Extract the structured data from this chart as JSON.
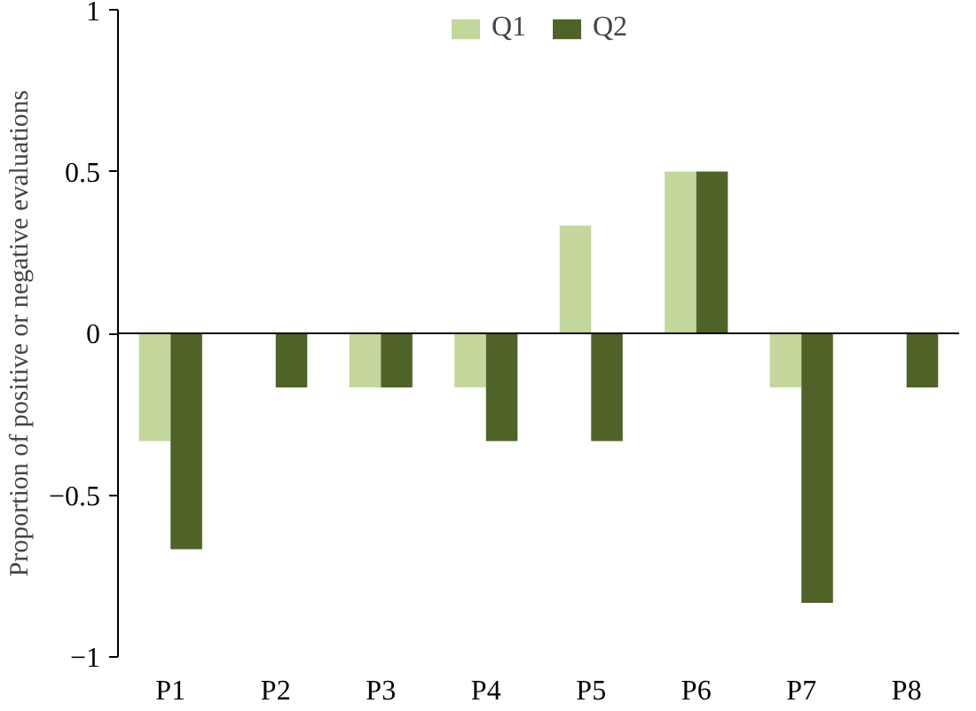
{
  "chart_data": {
    "type": "bar",
    "ylabel": "Proportion of positive or negative evaluations",
    "categories": [
      "P1",
      "P2",
      "P3",
      "P4",
      "P5",
      "P6",
      "P7",
      "P8"
    ],
    "series": [
      {
        "name": "Q1",
        "color": "#c3d69b",
        "values": [
          -0.333,
          0,
          -0.167,
          -0.167,
          0.333,
          0.5,
          -0.167,
          0
        ]
      },
      {
        "name": "Q2",
        "color": "#4f6228",
        "values": [
          -0.667,
          -0.167,
          -0.167,
          -0.333,
          -0.333,
          0.5,
          -0.833,
          -0.167
        ]
      }
    ],
    "ylim": [
      -1,
      1
    ],
    "yticks": [
      -1,
      -0.5,
      0,
      0.5,
      1
    ],
    "grid": false,
    "ref_lines": [
      {
        "axis": "y",
        "value": 0,
        "color": "#000000"
      }
    ],
    "legend": "top"
  }
}
